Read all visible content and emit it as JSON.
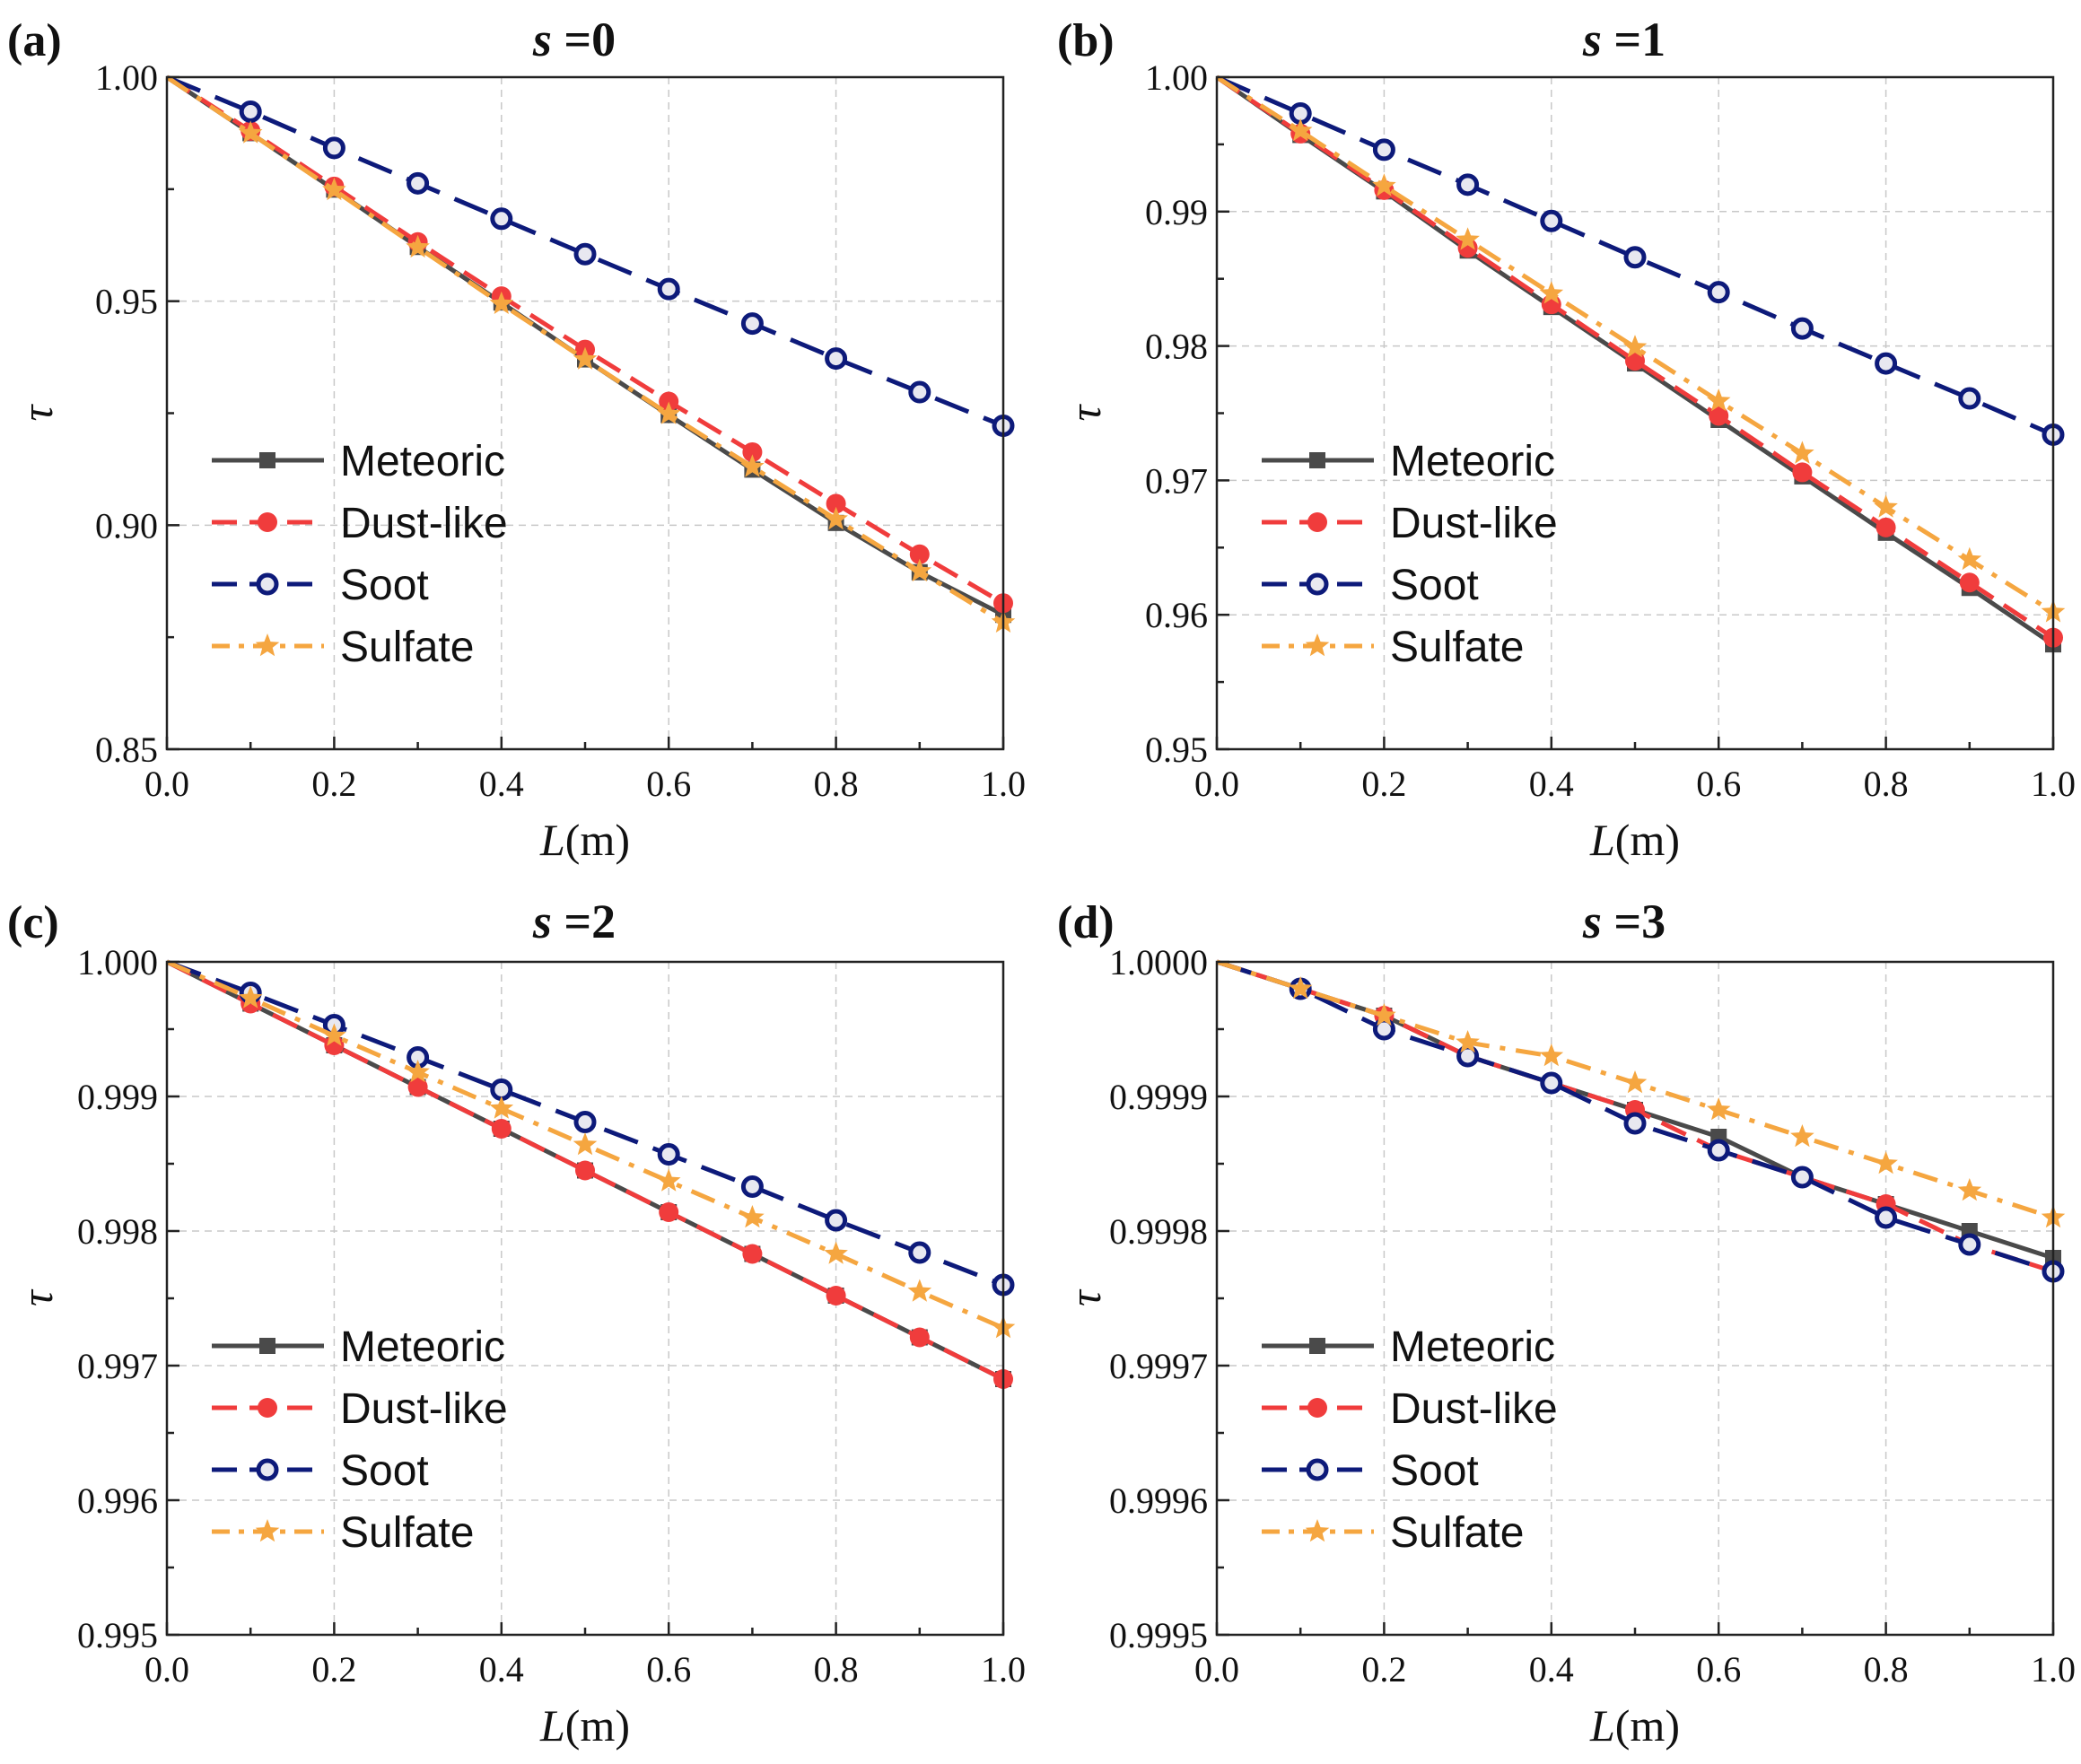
{
  "chart_data": [
    {
      "type": "line",
      "panel": "(a)",
      "title_var": "s",
      "title_val": "=0",
      "xlabel_var": "L",
      "xlabel_unit": "(m)",
      "ylabel": "τ",
      "xlim": [
        0.0,
        1.0
      ],
      "ylim": [
        0.85,
        1.0
      ],
      "xticks": [
        "0.0",
        "0.2",
        "0.4",
        "0.6",
        "0.8",
        "1.0"
      ],
      "yticks": [
        "0.85",
        "0.90",
        "0.95",
        "1.00"
      ],
      "ytick_values": [
        0.85,
        0.9,
        0.95,
        1.0
      ],
      "x": [
        0.0,
        0.1,
        0.2,
        0.3,
        0.4,
        0.5,
        0.6,
        0.7,
        0.8,
        0.9,
        1.0
      ],
      "series": [
        {
          "name": "Meteoric",
          "values": [
            1.0,
            0.9875,
            0.9749,
            0.9621,
            0.9497,
            0.937,
            0.9246,
            0.9124,
            0.9005,
            0.8895,
            0.88
          ]
        },
        {
          "name": "Dust-like",
          "values": [
            1.0,
            0.988,
            0.9756,
            0.9632,
            0.9511,
            0.9392,
            0.9276,
            0.9163,
            0.9048,
            0.8935,
            0.8826
          ]
        },
        {
          "name": "Soot",
          "values": [
            1.0,
            0.9923,
            0.9842,
            0.9763,
            0.9684,
            0.9605,
            0.9527,
            0.945,
            0.9372,
            0.9297,
            0.9222
          ]
        },
        {
          "name": "Sulfate",
          "values": [
            1.0,
            0.9875,
            0.9748,
            0.962,
            0.9494,
            0.937,
            0.9248,
            0.913,
            0.9013,
            0.8897,
            0.8783
          ]
        }
      ],
      "legend": [
        "Meteoric",
        "Dust-like",
        "Soot",
        "Sulfate"
      ],
      "legend_position": "bottom-left"
    },
    {
      "type": "line",
      "panel": "(b)",
      "title_var": "s",
      "title_val": "=1",
      "xlabel_var": "L",
      "xlabel_unit": "(m)",
      "ylabel": "τ",
      "xlim": [
        0.0,
        1.0
      ],
      "ylim": [
        0.95,
        1.0
      ],
      "xticks": [
        "0.0",
        "0.2",
        "0.4",
        "0.6",
        "0.8",
        "1.0"
      ],
      "yticks": [
        "0.95",
        "0.96",
        "0.97",
        "0.98",
        "0.99",
        "1.00"
      ],
      "ytick_values": [
        0.95,
        0.96,
        0.97,
        0.98,
        0.99,
        1.0
      ],
      "x": [
        0.0,
        0.1,
        0.2,
        0.3,
        0.4,
        0.5,
        0.6,
        0.7,
        0.8,
        0.9,
        1.0
      ],
      "series": [
        {
          "name": "Meteoric",
          "values": [
            1.0,
            0.9957,
            0.9915,
            0.9871,
            0.9829,
            0.9787,
            0.9745,
            0.9703,
            0.9661,
            0.962,
            0.9578
          ]
        },
        {
          "name": "Dust-like",
          "values": [
            1.0,
            0.9958,
            0.9916,
            0.9873,
            0.9831,
            0.9789,
            0.9748,
            0.9706,
            0.9665,
            0.9624,
            0.9583
          ]
        },
        {
          "name": "Soot",
          "values": [
            1.0,
            0.9973,
            0.9946,
            0.992,
            0.9893,
            0.9866,
            0.984,
            0.9813,
            0.9787,
            0.9761,
            0.9734
          ]
        },
        {
          "name": "Sulfate",
          "values": [
            1.0,
            0.996,
            0.9919,
            0.9879,
            0.9839,
            0.9799,
            0.9759,
            0.972,
            0.968,
            0.9641,
            0.9602
          ]
        }
      ],
      "legend": [
        "Meteoric",
        "Dust-like",
        "Soot",
        "Sulfate"
      ],
      "legend_position": "bottom-left"
    },
    {
      "type": "line",
      "panel": "(c)",
      "title_var": "s",
      "title_val": "=2",
      "xlabel_var": "L",
      "xlabel_unit": "(m)",
      "ylabel": "τ",
      "xlim": [
        0.0,
        1.0
      ],
      "ylim": [
        0.995,
        1.0
      ],
      "xticks": [
        "0.0",
        "0.2",
        "0.4",
        "0.6",
        "0.8",
        "1.0"
      ],
      "yticks": [
        "0.995",
        "0.996",
        "0.997",
        "0.998",
        "0.999",
        "1.000"
      ],
      "ytick_values": [
        0.995,
        0.996,
        0.997,
        0.998,
        0.999,
        1.0
      ],
      "x": [
        0.0,
        0.1,
        0.2,
        0.3,
        0.4,
        0.5,
        0.6,
        0.7,
        0.8,
        0.9,
        1.0
      ],
      "series": [
        {
          "name": "Meteoric",
          "values": [
            1.0,
            0.99969,
            0.99938,
            0.99907,
            0.99876,
            0.99845,
            0.99814,
            0.99783,
            0.99752,
            0.99721,
            0.9969
          ]
        },
        {
          "name": "Dust-like",
          "values": [
            1.0,
            0.99969,
            0.99938,
            0.99907,
            0.99876,
            0.99845,
            0.99814,
            0.99783,
            0.99752,
            0.99721,
            0.9969
          ]
        },
        {
          "name": "Soot",
          "values": [
            1.0,
            0.99977,
            0.99953,
            0.99929,
            0.99905,
            0.99881,
            0.99857,
            0.99833,
            0.99808,
            0.99784,
            0.9976
          ]
        },
        {
          "name": "Sulfate",
          "values": [
            1.0,
            0.99973,
            0.99945,
            0.99918,
            0.99891,
            0.99864,
            0.99837,
            0.9981,
            0.99783,
            0.99755,
            0.99728
          ]
        }
      ],
      "legend": [
        "Meteoric",
        "Dust-like",
        "Soot",
        "Sulfate"
      ],
      "legend_position": "bottom-left"
    },
    {
      "type": "line",
      "panel": "(d)",
      "title_var": "s",
      "title_val": "=3",
      "xlabel_var": "L",
      "xlabel_unit": "(m)",
      "ylabel": "τ",
      "xlim": [
        0.0,
        1.0
      ],
      "ylim": [
        0.9995,
        1.0
      ],
      "xticks": [
        "0.0",
        "0.2",
        "0.4",
        "0.6",
        "0.8",
        "1.0"
      ],
      "yticks": [
        "0.9995",
        "0.9996",
        "0.9997",
        "0.9998",
        "0.9999",
        "1.0000"
      ],
      "ytick_values": [
        0.9995,
        0.9996,
        0.9997,
        0.9998,
        0.9999,
        1.0
      ],
      "x": [
        0.0,
        0.1,
        0.2,
        0.3,
        0.4,
        0.5,
        0.6,
        0.7,
        0.8,
        0.9,
        1.0
      ],
      "series": [
        {
          "name": "Meteoric",
          "values": [
            1.0,
            0.99998,
            0.99996,
            0.99993,
            0.99991,
            0.99989,
            0.99987,
            0.99984,
            0.99982,
            0.9998,
            0.99978
          ]
        },
        {
          "name": "Dust-like",
          "values": [
            1.0,
            0.99998,
            0.99996,
            0.99993,
            0.99991,
            0.99989,
            0.99986,
            0.99984,
            0.99982,
            0.99979,
            0.99977
          ]
        },
        {
          "name": "Soot",
          "values": [
            1.0,
            0.99998,
            0.99995,
            0.99993,
            0.99991,
            0.99988,
            0.99986,
            0.99984,
            0.99981,
            0.99979,
            0.99977
          ]
        },
        {
          "name": "Sulfate",
          "values": [
            1.0,
            0.99998,
            0.99996,
            0.99994,
            0.99993,
            0.99991,
            0.99989,
            0.99987,
            0.99985,
            0.99983,
            0.99981
          ]
        }
      ],
      "legend": [
        "Meteoric",
        "Dust-like",
        "Soot",
        "Sulfate"
      ],
      "legend_position": "bottom-left"
    }
  ],
  "styles": {
    "Meteoric": {
      "color": "#4a4a4a",
      "marker": "square",
      "dash": "solid"
    },
    "Dust-like": {
      "color": "#f03c3c",
      "marker": "circle",
      "dash": "dash"
    },
    "Soot": {
      "color": "#0d1a7a",
      "marker": "ring",
      "dash": "longdash"
    },
    "Sulfate": {
      "color": "#f5a640",
      "marker": "star",
      "dash": "dashdot"
    }
  }
}
